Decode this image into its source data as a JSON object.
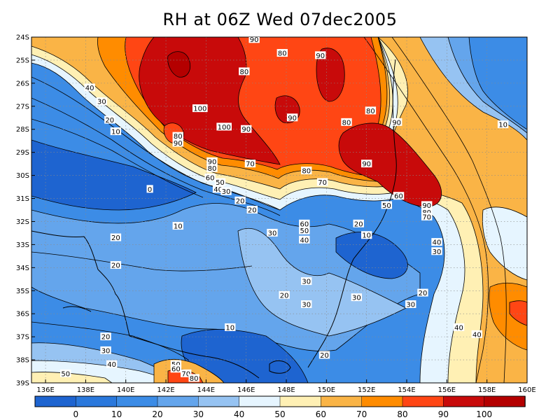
{
  "title": "RH at 06Z Wed 07dec2005",
  "map": {
    "lon_ticks": [
      "136E",
      "138E",
      "140E",
      "142E",
      "144E",
      "146E",
      "148E",
      "150E",
      "152E",
      "154E",
      "156E",
      "158E",
      "160E"
    ],
    "lat_ticks": [
      "24S",
      "25S",
      "26S",
      "27S",
      "28S",
      "29S",
      "30S",
      "31S",
      "32S",
      "33S",
      "34S",
      "35S",
      "36S",
      "37S",
      "38S",
      "39S"
    ],
    "grid": "dotted",
    "contour_labels": [
      {
        "text": "90",
        "lon": 146.4,
        "lat": -24.1
      },
      {
        "text": "80",
        "lon": 147.8,
        "lat": -24.7
      },
      {
        "text": "90",
        "lon": 149.7,
        "lat": -24.8
      },
      {
        "text": "80",
        "lon": 145.9,
        "lat": -25.5
      },
      {
        "text": "40",
        "lon": 138.2,
        "lat": -26.2
      },
      {
        "text": "30",
        "lon": 138.8,
        "lat": -26.8
      },
      {
        "text": "100",
        "lon": 143.7,
        "lat": -27.1
      },
      {
        "text": "90",
        "lon": 148.3,
        "lat": -27.5
      },
      {
        "text": "80",
        "lon": 152.2,
        "lat": -27.2
      },
      {
        "text": "20",
        "lon": 139.2,
        "lat": -27.6
      },
      {
        "text": "80",
        "lon": 151.0,
        "lat": -27.7
      },
      {
        "text": "90",
        "lon": 153.5,
        "lat": -27.7
      },
      {
        "text": "10",
        "lon": 139.5,
        "lat": -28.1
      },
      {
        "text": "100",
        "lon": 144.9,
        "lat": -27.9
      },
      {
        "text": "90",
        "lon": 146.0,
        "lat": -28.0
      },
      {
        "text": "80",
        "lon": 142.6,
        "lat": -28.3
      },
      {
        "text": "90",
        "lon": 142.6,
        "lat": -28.6
      },
      {
        "text": "10",
        "lon": 158.8,
        "lat": -27.8
      },
      {
        "text": "90",
        "lon": 144.3,
        "lat": -29.4
      },
      {
        "text": "80",
        "lon": 144.3,
        "lat": -29.7
      },
      {
        "text": "70",
        "lon": 146.2,
        "lat": -29.5
      },
      {
        "text": "80",
        "lon": 149.0,
        "lat": -29.8
      },
      {
        "text": "90",
        "lon": 152.0,
        "lat": -29.5
      },
      {
        "text": "60",
        "lon": 144.2,
        "lat": -30.1
      },
      {
        "text": "50",
        "lon": 144.7,
        "lat": -30.3
      },
      {
        "text": "40",
        "lon": 144.6,
        "lat": -30.6
      },
      {
        "text": "30",
        "lon": 145.0,
        "lat": -30.7
      },
      {
        "text": "0",
        "lon": 141.2,
        "lat": -30.6
      },
      {
        "text": "70",
        "lon": 149.8,
        "lat": -30.3
      },
      {
        "text": "60",
        "lon": 153.6,
        "lat": -30.9
      },
      {
        "text": "50",
        "lon": 153.0,
        "lat": -31.3
      },
      {
        "text": "20",
        "lon": 145.7,
        "lat": -31.1
      },
      {
        "text": "20",
        "lon": 146.3,
        "lat": -31.5
      },
      {
        "text": "90",
        "lon": 155.0,
        "lat": -31.3
      },
      {
        "text": "80",
        "lon": 155.0,
        "lat": -31.6
      },
      {
        "text": "70",
        "lon": 155.0,
        "lat": -31.8
      },
      {
        "text": "10",
        "lon": 142.6,
        "lat": -32.2
      },
      {
        "text": "60",
        "lon": 148.9,
        "lat": -32.1
      },
      {
        "text": "50",
        "lon": 148.9,
        "lat": -32.4
      },
      {
        "text": "40",
        "lon": 148.9,
        "lat": -32.8
      },
      {
        "text": "30",
        "lon": 147.3,
        "lat": -32.5
      },
      {
        "text": "20",
        "lon": 151.6,
        "lat": -32.1
      },
      {
        "text": "10",
        "lon": 152.0,
        "lat": -32.6
      },
      {
        "text": "40",
        "lon": 155.5,
        "lat": -32.9
      },
      {
        "text": "30",
        "lon": 155.5,
        "lat": -33.3
      },
      {
        "text": "20",
        "lon": 139.5,
        "lat": -32.7
      },
      {
        "text": "20",
        "lon": 139.5,
        "lat": -33.9
      },
      {
        "text": "30",
        "lon": 149.0,
        "lat": -34.6
      },
      {
        "text": "20",
        "lon": 147.9,
        "lat": -35.2
      },
      {
        "text": "30",
        "lon": 151.5,
        "lat": -35.3
      },
      {
        "text": "20",
        "lon": 154.8,
        "lat": -35.1
      },
      {
        "text": "30",
        "lon": 149.0,
        "lat": -35.6
      },
      {
        "text": "30",
        "lon": 154.2,
        "lat": -35.6
      },
      {
        "text": "10",
        "lon": 145.2,
        "lat": -36.6
      },
      {
        "text": "40",
        "lon": 156.6,
        "lat": -36.6
      },
      {
        "text": "40",
        "lon": 157.5,
        "lat": -36.9
      },
      {
        "text": "20",
        "lon": 139.0,
        "lat": -37.0
      },
      {
        "text": "30",
        "lon": 139.0,
        "lat": -37.6
      },
      {
        "text": "40",
        "lon": 139.3,
        "lat": -38.2
      },
      {
        "text": "20",
        "lon": 149.9,
        "lat": -37.8
      },
      {
        "text": "50",
        "lon": 137.0,
        "lat": -38.6
      },
      {
        "text": "50",
        "lon": 142.5,
        "lat": -38.2
      },
      {
        "text": "60",
        "lon": 142.5,
        "lat": -38.4
      },
      {
        "text": "70",
        "lon": 143.0,
        "lat": -38.6
      },
      {
        "text": "80",
        "lon": 143.4,
        "lat": -38.8
      }
    ]
  },
  "colorbar": {
    "labels": [
      "0",
      "10",
      "20",
      "30",
      "40",
      "50",
      "60",
      "70",
      "80",
      "90",
      "100"
    ],
    "colors": [
      "#1e64d0",
      "#2a78dc",
      "#3c8ce6",
      "#64a5ec",
      "#96c3f2",
      "#e6f5ff",
      "#fff0b4",
      "#fab446",
      "#ff8c00",
      "#ff4614",
      "#c80a0a",
      "#b40000"
    ]
  },
  "chart_data": {
    "type": "heatmap",
    "title": "RH at 06Z Wed 07dec2005",
    "variable": "RH",
    "xlabel": "",
    "ylabel": "",
    "xlim": [
      135.3,
      160
    ],
    "ylim": [
      -39,
      -24
    ],
    "levels": [
      0,
      10,
      20,
      30,
      40,
      50,
      60,
      70,
      80,
      90,
      100
    ],
    "x_ticks": [
      "136E",
      "138E",
      "140E",
      "142E",
      "144E",
      "146E",
      "148E",
      "150E",
      "152E",
      "154E",
      "156E",
      "158E",
      "160E"
    ],
    "y_ticks": [
      "24S",
      "25S",
      "26S",
      "27S",
      "28S",
      "29S",
      "30S",
      "31S",
      "32S",
      "33S",
      "34S",
      "35S",
      "36S",
      "37S",
      "38S",
      "39S"
    ]
  }
}
